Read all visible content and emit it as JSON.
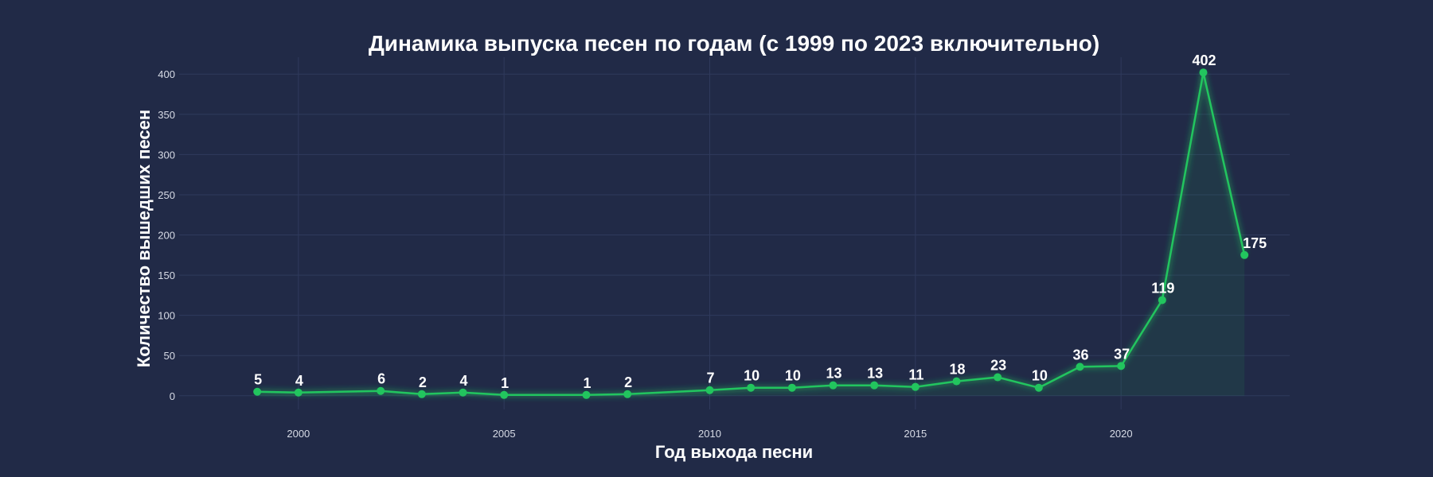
{
  "chart_data": {
    "type": "line",
    "title": "Динамика выпуска песен по годам (с 1999 по 2023 включительно)",
    "xlabel": "Год выхода песни",
    "ylabel": "Количество вышедших песен",
    "x": [
      1999,
      2000,
      2002,
      2003,
      2004,
      2005,
      2007,
      2008,
      2010,
      2011,
      2012,
      2013,
      2014,
      2015,
      2016,
      2017,
      2018,
      2019,
      2020,
      2021,
      2022,
      2023
    ],
    "values": [
      5,
      4,
      6,
      2,
      4,
      1,
      1,
      2,
      7,
      10,
      10,
      13,
      13,
      11,
      18,
      23,
      10,
      36,
      37,
      119,
      402,
      175
    ],
    "xlim": [
      1997.1,
      2024.1
    ],
    "ylim": [
      -17,
      421
    ],
    "xticks": [
      2000,
      2005,
      2010,
      2015,
      2020
    ],
    "yticks": [
      0,
      50,
      100,
      150,
      200,
      250,
      300,
      350,
      400
    ],
    "grid": true,
    "area_fill": true,
    "colors": {
      "background": "#212a47",
      "line": "#22c55e",
      "marker": "#22c55e",
      "area": "#22c55e",
      "grid": "#2f3a5c",
      "text": "#ffffff"
    }
  }
}
